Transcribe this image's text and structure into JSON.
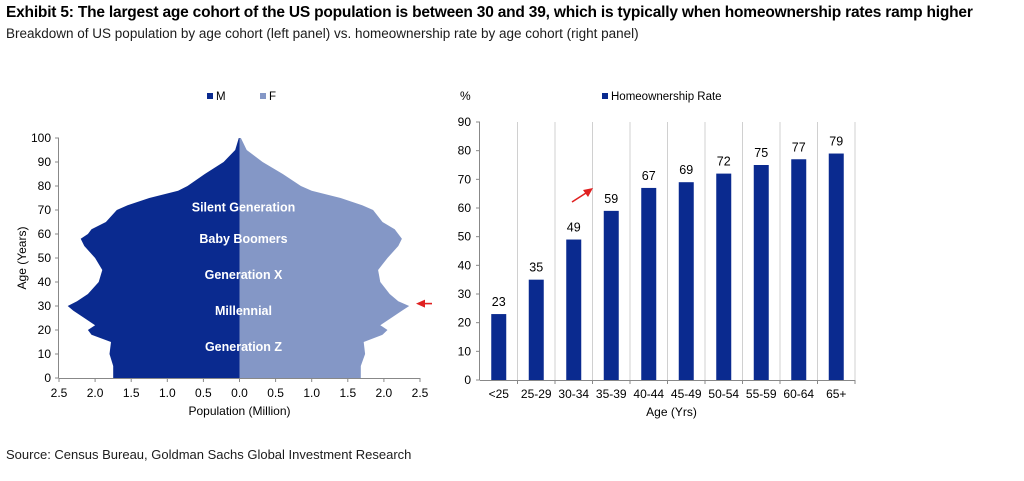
{
  "title": "Exhibit 5: The largest age cohort of the US population is between 30 and 39, which is typically when homeownership rates ramp higher",
  "subtitle": "Breakdown of US population by age cohort (left panel) vs. homeownership rate by age cohort (right panel)",
  "source": "Source: Census Bureau, Goldman Sachs Global Investment Research",
  "colors": {
    "male": "#0a2a8f",
    "female": "#8497c6",
    "bar": "#0a2a8f",
    "arrow": "#e02020"
  },
  "chart_data": [
    {
      "type": "bar",
      "orientation": "horizontal-pyramid",
      "series": [
        {
          "name": "M",
          "color": "#0a2a8f",
          "age": [
            0,
            5,
            10,
            15,
            18,
            20,
            22,
            25,
            28,
            30,
            32,
            35,
            40,
            45,
            50,
            55,
            58,
            60,
            62,
            65,
            70,
            72,
            75,
            78,
            80,
            85,
            90,
            95,
            100
          ],
          "values": [
            1.75,
            1.75,
            1.8,
            1.78,
            2.05,
            2.1,
            2.0,
            2.15,
            2.3,
            2.38,
            2.25,
            2.1,
            1.95,
            1.9,
            2.0,
            2.15,
            2.2,
            2.1,
            2.05,
            1.85,
            1.7,
            1.55,
            1.25,
            0.85,
            0.72,
            0.48,
            0.22,
            0.06,
            0.01
          ]
        },
        {
          "name": "F",
          "color": "#8497c6",
          "age": [
            0,
            5,
            10,
            15,
            18,
            20,
            22,
            25,
            28,
            30,
            32,
            35,
            40,
            45,
            50,
            55,
            58,
            60,
            62,
            65,
            70,
            72,
            75,
            78,
            80,
            85,
            90,
            95,
            100
          ],
          "values": [
            1.68,
            1.68,
            1.74,
            1.72,
            1.98,
            2.05,
            1.95,
            2.1,
            2.25,
            2.35,
            2.2,
            2.08,
            1.95,
            1.92,
            2.05,
            2.2,
            2.25,
            2.2,
            2.15,
            1.98,
            1.85,
            1.7,
            1.4,
            1.0,
            0.85,
            0.6,
            0.32,
            0.1,
            0.02
          ]
        }
      ],
      "xlabel": "Population (Million)",
      "ylabel": "Age (Years)",
      "xlim": [
        -2.5,
        2.5
      ],
      "ylim": [
        0,
        100
      ],
      "xticks": [
        "2.5",
        "2.0",
        "1.5",
        "1.0",
        "0.5",
        "0.0",
        "0.5",
        "1.0",
        "1.5",
        "2.0",
        "2.5"
      ],
      "yticks": [
        "0",
        "10",
        "20",
        "30",
        "40",
        "50",
        "60",
        "70",
        "80",
        "90",
        "100"
      ],
      "legend": "top-center",
      "annotations": [
        {
          "text": "Silent Generation",
          "age": 71
        },
        {
          "text": "Baby Boomers",
          "age": 58
        },
        {
          "text": "Generation X",
          "age": 43
        },
        {
          "text": "Millennial",
          "age": 28
        },
        {
          "text": "Generation Z",
          "age": 13
        }
      ],
      "arrow_age": 31
    },
    {
      "type": "bar",
      "categories": [
        "<25",
        "25-29",
        "30-34",
        "35-39",
        "40-44",
        "45-49",
        "50-54",
        "55-59",
        "60-64",
        "65+"
      ],
      "series": [
        {
          "name": "Homeownership Rate",
          "values": [
            23,
            35,
            49,
            59,
            67,
            69,
            72,
            75,
            77,
            79
          ]
        }
      ],
      "xlabel": "Age (Yrs)",
      "ylabel": "%",
      "ylim": [
        0,
        90
      ],
      "yticks": [
        "0",
        "10",
        "20",
        "30",
        "40",
        "50",
        "60",
        "70",
        "80",
        "90"
      ],
      "grid": "vertical",
      "legend": "top-center"
    }
  ]
}
